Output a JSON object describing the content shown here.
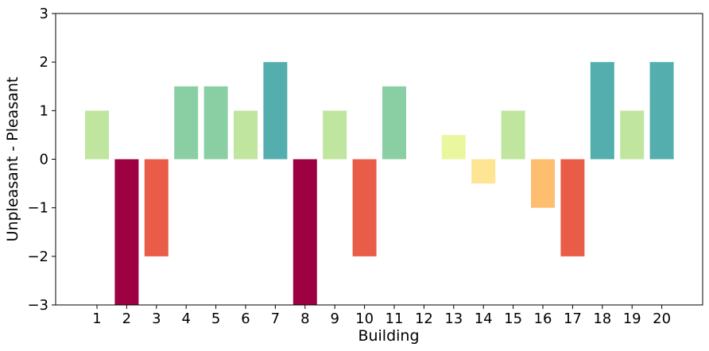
{
  "chart_data": {
    "type": "bar",
    "title": "",
    "xlabel": "Building",
    "ylabel": "Unpleasant - Pleasant",
    "categories": [
      "1",
      "2",
      "3",
      "4",
      "5",
      "6",
      "7",
      "8",
      "9",
      "10",
      "11",
      "12",
      "13",
      "14",
      "15",
      "16",
      "17",
      "18",
      "19",
      "20"
    ],
    "values": [
      1,
      -3,
      -2,
      1.5,
      1.5,
      1,
      2,
      -3,
      1,
      -2,
      1.5,
      0,
      0.5,
      -0.5,
      1,
      -1,
      -2,
      2,
      1,
      2
    ],
    "ylim": [
      -3,
      3
    ],
    "yticks": [
      "3",
      "2",
      "1",
      "0",
      "−1",
      "−2",
      "−3"
    ],
    "ytick_values": [
      3,
      2,
      1,
      0,
      -1,
      -2,
      -3
    ],
    "grid": false,
    "colormap": "Spectral",
    "value_colors": {
      "-3": "#9e0142",
      "-2": "#e95c47",
      "-1": "#fdbf6f",
      "-0.5": "#fee593",
      "0.5": "#eaf79e",
      "1": "#c0e59f",
      "1.5": "#8acfa4",
      "2": "#54aead"
    }
  }
}
